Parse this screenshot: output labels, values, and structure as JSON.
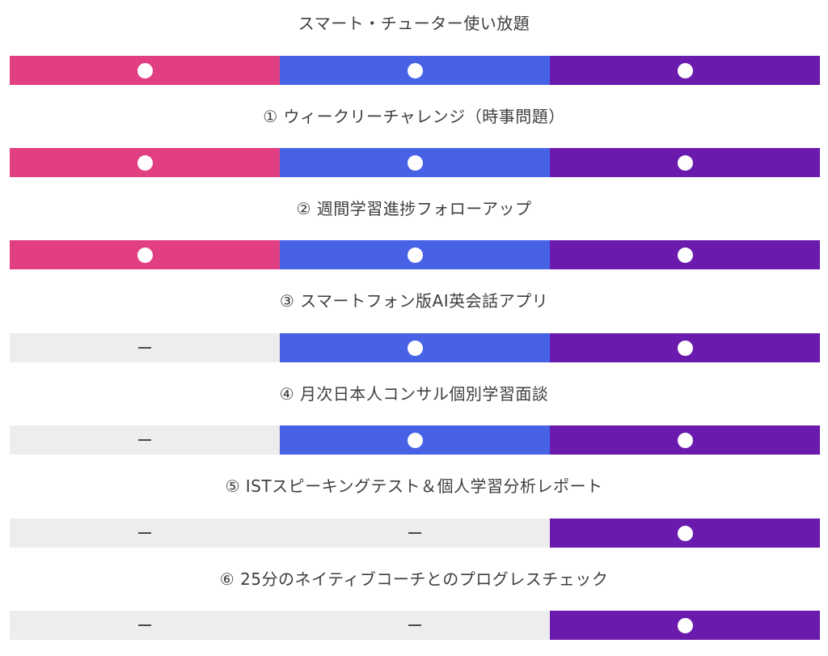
{
  "plan_colors": [
    "#e23f82",
    "#4862e6",
    "#6a1aad"
  ],
  "off_color": "#ededed",
  "features": [
    {
      "label": "スマート・チューター使い放題",
      "included": [
        true,
        true,
        true
      ]
    },
    {
      "label": "① ウィークリーチャレンジ（時事問題）",
      "included": [
        true,
        true,
        true
      ]
    },
    {
      "label": "② 週間学習進捗フォローアップ",
      "included": [
        true,
        true,
        true
      ]
    },
    {
      "label": "③ スマートフォン版AI英会話アプリ",
      "included": [
        false,
        true,
        true
      ]
    },
    {
      "label": "④ 月次日本人コンサル個別学習面談",
      "included": [
        false,
        true,
        true
      ]
    },
    {
      "label": "⑤ ISTスピーキングテスト＆個人学習分析レポート",
      "included": [
        false,
        false,
        true
      ]
    },
    {
      "label": "⑥ 25分のネイティブコーチとのプログレスチェック",
      "included": [
        false,
        false,
        true
      ]
    }
  ]
}
